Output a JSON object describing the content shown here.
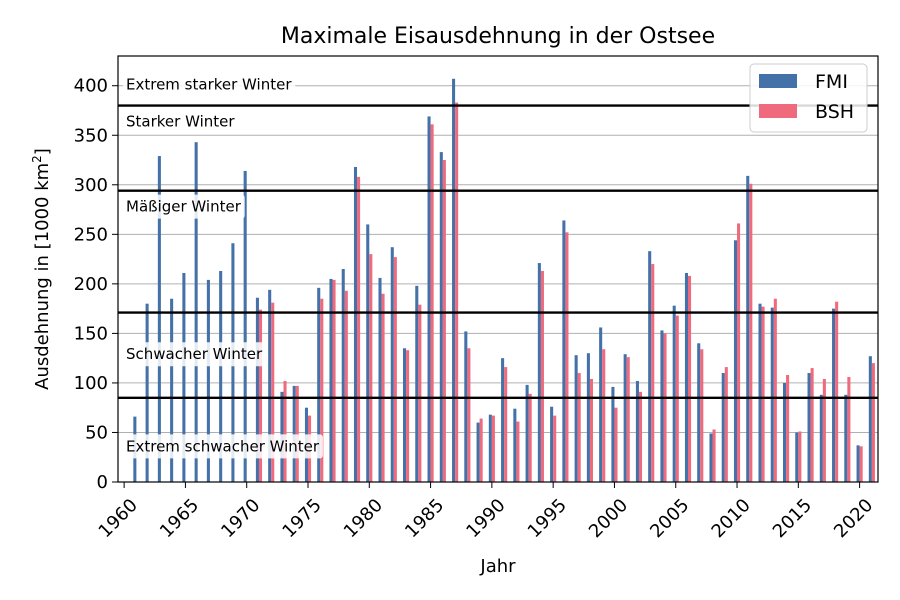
{
  "chart_data": {
    "type": "bar",
    "title": "Maximale Eisausdehnung in der  Ostsee",
    "xlabel": "Jahr",
    "ylabel_main": "Ausdehnung in [1000 km",
    "ylabel_sup": "2",
    "ylabel_end": "]",
    "xlim": [
      1959.5,
      2021.5
    ],
    "ylim": [
      0,
      430
    ],
    "xticks": [
      1960,
      1965,
      1970,
      1975,
      1980,
      1985,
      1990,
      1995,
      2000,
      2005,
      2010,
      2015,
      2020
    ],
    "yticks": [
      0,
      50,
      100,
      150,
      200,
      250,
      300,
      350,
      400
    ],
    "grid": "horizontal",
    "legend_position": "top-right",
    "colors": {
      "FMI": "#4472a8",
      "BSH": "#f06a7e"
    },
    "thresholds": [
      380,
      294,
      171,
      85
    ],
    "band_labels": [
      {
        "text": "Extrem starker Winter",
        "y": 401
      },
      {
        "text": "Starker Winter",
        "y": 364
      },
      {
        "text": "Mäßiger Winter",
        "y": 278
      },
      {
        "text": "Schwacher Winter",
        "y": 129
      },
      {
        "text": "Extrem schwacher Winter",
        "y": 36
      }
    ],
    "series": [
      {
        "name": "FMI",
        "x": [
          1961,
          1962,
          1963,
          1964,
          1965,
          1966,
          1967,
          1968,
          1969,
          1970,
          1971,
          1972,
          1973,
          1974,
          1975,
          1976,
          1977,
          1978,
          1979,
          1980,
          1981,
          1982,
          1983,
          1984,
          1985,
          1986,
          1987,
          1988,
          1989,
          1990,
          1991,
          1992,
          1993,
          1994,
          1995,
          1996,
          1997,
          1998,
          1999,
          2000,
          2001,
          2002,
          2003,
          2004,
          2005,
          2006,
          2007,
          2008,
          2009,
          2010,
          2011,
          2012,
          2013,
          2014,
          2015,
          2016,
          2017,
          2018,
          2019,
          2020,
          2021
        ],
        "values": [
          66,
          180,
          329,
          185,
          211,
          343,
          204,
          213,
          241,
          314,
          186,
          194,
          91,
          97,
          75,
          196,
          205,
          215,
          318,
          260,
          206,
          237,
          135,
          198,
          369,
          333,
          407,
          152,
          60,
          68,
          125,
          74,
          98,
          221,
          76,
          264,
          128,
          130,
          156,
          96,
          129,
          102,
          233,
          153,
          178,
          211,
          140,
          49,
          110,
          244,
          309,
          180,
          176,
          100,
          50,
          110,
          88,
          175,
          88,
          37,
          127
        ]
      },
      {
        "name": "BSH",
        "x": [
          1971,
          1972,
          1973,
          1974,
          1975,
          1976,
          1977,
          1978,
          1979,
          1980,
          1981,
          1982,
          1983,
          1984,
          1985,
          1986,
          1987,
          1988,
          1989,
          1990,
          1991,
          1992,
          1993,
          1994,
          1995,
          1996,
          1997,
          1998,
          1999,
          2000,
          2001,
          2002,
          2003,
          2004,
          2005,
          2006,
          2007,
          2008,
          2009,
          2010,
          2011,
          2012,
          2013,
          2014,
          2015,
          2016,
          2017,
          2018,
          2019,
          2020,
          2021
        ],
        "values": [
          174,
          181,
          102,
          97,
          67,
          185,
          204,
          193,
          308,
          230,
          190,
          227,
          133,
          179,
          361,
          325,
          383,
          135,
          64,
          67,
          116,
          61,
          89,
          213,
          67,
          252,
          110,
          104,
          134,
          75,
          126,
          91,
          220,
          150,
          168,
          208,
          134,
          53,
          116,
          261,
          301,
          177,
          185,
          108,
          51,
          115,
          104,
          182,
          106,
          36,
          120
        ]
      }
    ]
  }
}
